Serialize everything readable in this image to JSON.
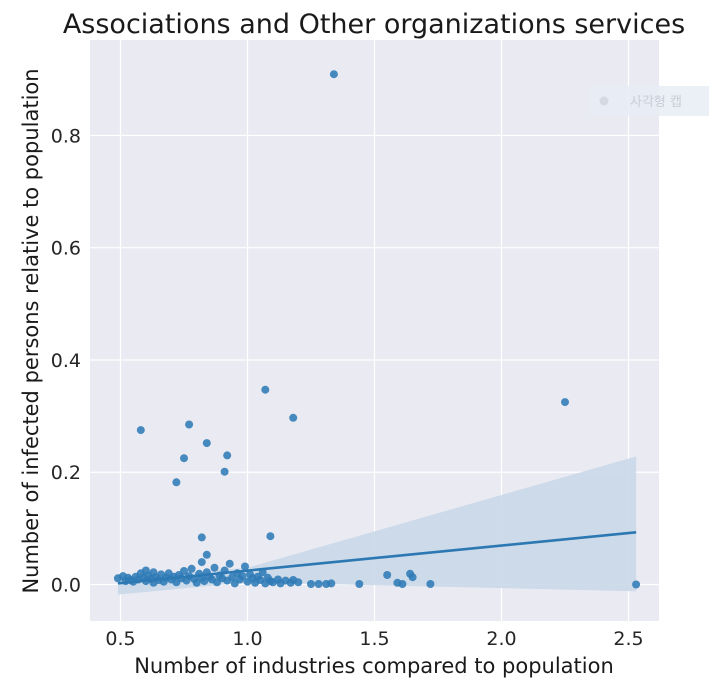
{
  "chart_data": {
    "type": "scatter",
    "title": "Associations and Other organizations  services",
    "xlabel": "Number of industries compared to population",
    "ylabel": "Number of infected persons relative to population",
    "xlim": [
      0.38,
      2.62
    ],
    "ylim": [
      -0.065,
      0.97
    ],
    "xticks": [
      "0.5",
      "1.0",
      "1.5",
      "2.0",
      "2.5"
    ],
    "yticks": [
      "0.0",
      "0.2",
      "0.4",
      "0.6",
      "0.8"
    ],
    "xtick_values": [
      0.5,
      1.0,
      1.5,
      2.0,
      2.5
    ],
    "ytick_values": [
      0.0,
      0.2,
      0.4,
      0.6,
      0.8
    ],
    "grid": true,
    "background": "#eaeaf2",
    "point_color": "#2f7bb6",
    "line_color": "#2b78b3",
    "band_color": "#c7d7e8",
    "legend": {
      "label": "사각형 캡",
      "position": "top-right"
    },
    "points": [
      [
        0.49,
        0.011
      ],
      [
        0.51,
        0.015
      ],
      [
        0.52,
        0.006
      ],
      [
        0.53,
        0.012
      ],
      [
        0.54,
        0.008
      ],
      [
        0.55,
        0.005
      ],
      [
        0.56,
        0.014
      ],
      [
        0.57,
        0.009
      ],
      [
        0.58,
        0.02
      ],
      [
        0.59,
        0.012
      ],
      [
        0.6,
        0.025
      ],
      [
        0.6,
        0.006
      ],
      [
        0.61,
        0.016
      ],
      [
        0.62,
        0.01
      ],
      [
        0.63,
        0.003
      ],
      [
        0.63,
        0.022
      ],
      [
        0.64,
        0.013
      ],
      [
        0.65,
        0.008
      ],
      [
        0.66,
        0.018
      ],
      [
        0.67,
        0.005
      ],
      [
        0.68,
        0.012
      ],
      [
        0.69,
        0.02
      ],
      [
        0.7,
        0.009
      ],
      [
        0.71,
        0.014
      ],
      [
        0.72,
        0.004
      ],
      [
        0.73,
        0.017
      ],
      [
        0.74,
        0.011
      ],
      [
        0.75,
        0.024
      ],
      [
        0.76,
        0.007
      ],
      [
        0.77,
        0.015
      ],
      [
        0.78,
        0.028
      ],
      [
        0.79,
        0.01
      ],
      [
        0.8,
        0.003
      ],
      [
        0.81,
        0.019
      ],
      [
        0.82,
        0.012
      ],
      [
        0.83,
        0.006
      ],
      [
        0.84,
        0.022
      ],
      [
        0.85,
        0.014
      ],
      [
        0.86,
        0.009
      ],
      [
        0.87,
        0.03
      ],
      [
        0.88,
        0.004
      ],
      [
        0.89,
        0.016
      ],
      [
        0.9,
        0.011
      ],
      [
        0.91,
        0.025
      ],
      [
        0.92,
        0.007
      ],
      [
        0.93,
        0.037
      ],
      [
        0.94,
        0.013
      ],
      [
        0.95,
        0.002
      ],
      [
        0.96,
        0.02
      ],
      [
        0.97,
        0.009
      ],
      [
        0.98,
        0.015
      ],
      [
        0.99,
        0.032
      ],
      [
        1.0,
        0.005
      ],
      [
        1.01,
        0.018
      ],
      [
        1.02,
        0.011
      ],
      [
        1.03,
        0.003
      ],
      [
        1.04,
        0.014
      ],
      [
        1.05,
        0.008
      ],
      [
        1.06,
        0.022
      ],
      [
        1.07,
        0.002
      ],
      [
        1.08,
        0.012
      ],
      [
        1.09,
        0.006
      ],
      [
        1.1,
        0.004
      ],
      [
        1.12,
        0.009
      ],
      [
        1.13,
        0.002
      ],
      [
        1.15,
        0.007
      ],
      [
        1.17,
        0.003
      ],
      [
        1.18,
        0.008
      ],
      [
        1.2,
        0.004
      ],
      [
        1.25,
        0.001
      ],
      [
        1.28,
        0.001
      ],
      [
        1.31,
        0.001
      ],
      [
        1.33,
        0.002
      ],
      [
        1.44,
        0.001
      ],
      [
        1.55,
        0.017
      ],
      [
        1.59,
        0.003
      ],
      [
        1.61,
        0.001
      ],
      [
        1.64,
        0.019
      ],
      [
        1.65,
        0.013
      ],
      [
        1.72,
        0.001
      ],
      [
        2.53,
        0.0
      ],
      [
        1.34,
        0.909
      ],
      [
        1.07,
        0.347
      ],
      [
        2.25,
        0.325
      ],
      [
        1.18,
        0.297
      ],
      [
        0.77,
        0.285
      ],
      [
        0.58,
        0.275
      ],
      [
        0.84,
        0.252
      ],
      [
        0.92,
        0.23
      ],
      [
        0.75,
        0.225
      ],
      [
        0.91,
        0.201
      ],
      [
        0.72,
        0.182
      ],
      [
        1.09,
        0.086
      ],
      [
        0.82,
        0.084
      ],
      [
        0.84,
        0.053
      ],
      [
        0.82,
        0.04
      ]
    ],
    "regression": {
      "x": [
        0.49,
        2.53
      ],
      "y": [
        0.002,
        0.093
      ]
    },
    "ci_band": {
      "x": [
        0.49,
        1.0,
        2.53
      ],
      "upper": [
        0.012,
        0.03,
        0.228
      ],
      "lower": [
        -0.018,
        0.004,
        -0.012
      ]
    }
  }
}
